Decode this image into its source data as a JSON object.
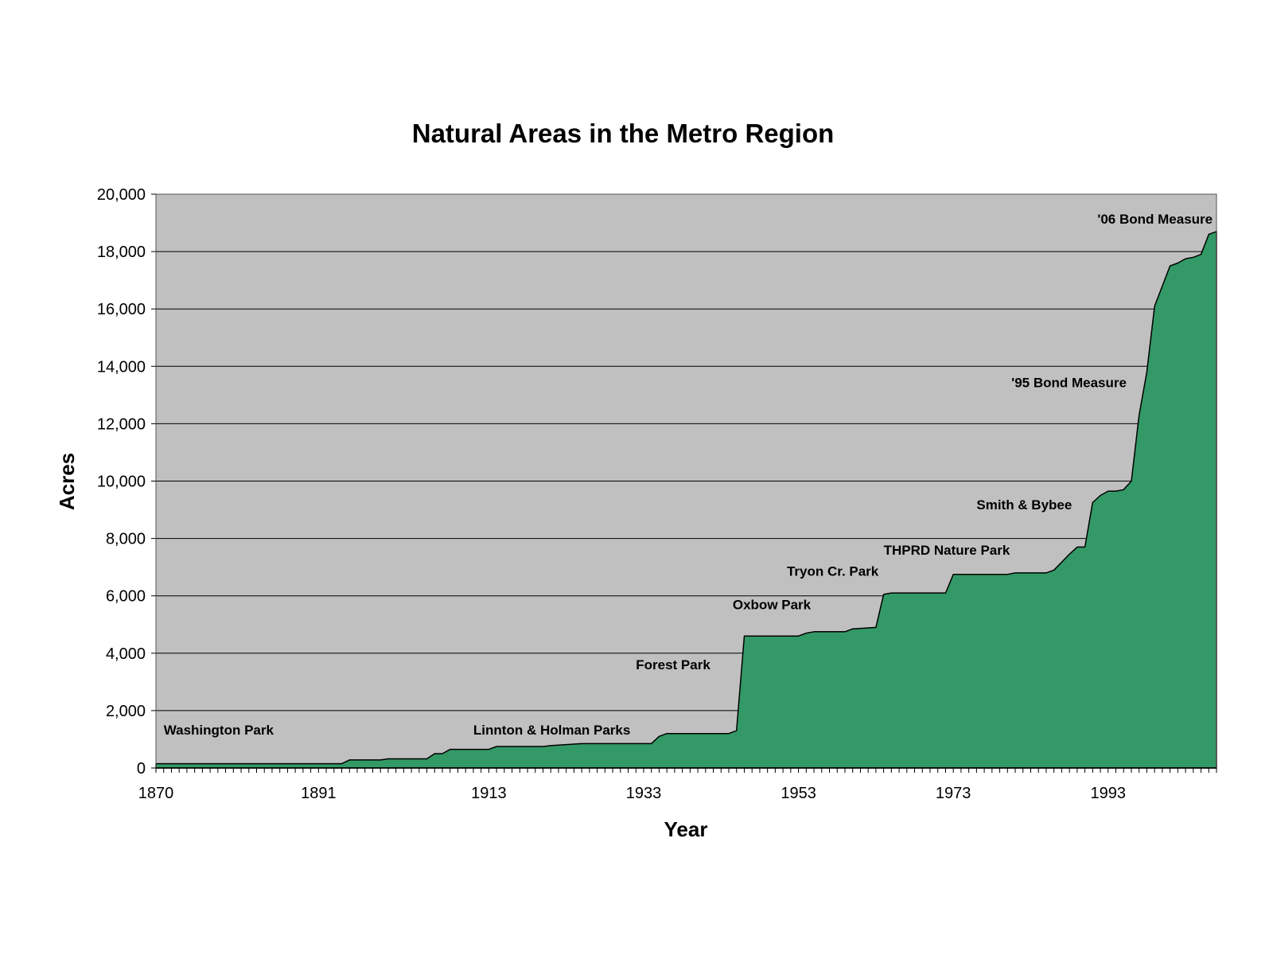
{
  "chart_data": {
    "type": "area",
    "title": "Natural Areas in the Metro Region",
    "xlabel": "Year",
    "ylabel": "Acres",
    "xlim": [
      1870,
      2007
    ],
    "ylim": [
      0,
      20000
    ],
    "x_tick_values": [
      1870,
      1891,
      1913,
      1933,
      1953,
      1973,
      1993
    ],
    "x_tick_labels": [
      "1870",
      "1891",
      "1913",
      "1933",
      "1953",
      "1973",
      "1993"
    ],
    "y_tick_values": [
      0,
      2000,
      4000,
      6000,
      8000,
      10000,
      12000,
      14000,
      16000,
      18000,
      20000
    ],
    "y_tick_labels": [
      "0",
      "2,000",
      "4,000",
      "6,000",
      "8,000",
      "10,000",
      "12,000",
      "14,000",
      "16,000",
      "18,000",
      "20,000"
    ],
    "grid": true,
    "legend": false,
    "plot_background": "#c0c0c0",
    "fill_color": "#339966",
    "line_color": "#000000",
    "series": [
      {
        "x": [
          1870,
          1894,
          1895,
          1896,
          1899,
          1900,
          1901,
          1905,
          1906,
          1907,
          1908,
          1909,
          1913,
          1914,
          1920,
          1921,
          1925,
          1930,
          1934,
          1935,
          1936,
          1944,
          1945,
          1946,
          1947,
          1953,
          1954,
          1955,
          1959,
          1960,
          1963,
          1964,
          1965,
          1972,
          1973,
          1980,
          1981,
          1985,
          1986,
          1988,
          1989,
          1990,
          1991,
          1992,
          1993,
          1994,
          1995,
          1996,
          1997,
          1998,
          1999,
          2000,
          2001,
          2002,
          2003,
          2004,
          2005,
          2006,
          2007
        ],
        "y": [
          150,
          150,
          280,
          280,
          280,
          320,
          320,
          320,
          500,
          500,
          650,
          650,
          650,
          750,
          750,
          780,
          850,
          850,
          850,
          1100,
          1200,
          1200,
          1300,
          4600,
          4600,
          4600,
          4700,
          4750,
          4750,
          4850,
          4900,
          6050,
          6100,
          6100,
          6750,
          6750,
          6800,
          6800,
          6900,
          7450,
          7700,
          7700,
          9250,
          9500,
          9650,
          9650,
          9700,
          10000,
          12300,
          13800,
          16100,
          16800,
          17500,
          17600,
          17750,
          17800,
          17900,
          18600,
          18700
        ]
      }
    ],
    "annotations": [
      {
        "text": "Washington Park",
        "x": 1871,
        "y": 1170,
        "anchor": "start"
      },
      {
        "text": "Linnton & Holman Parks",
        "x": 1911,
        "y": 1170,
        "anchor": "start"
      },
      {
        "text": "Forest Park",
        "x": 1932,
        "y": 3440,
        "anchor": "start"
      },
      {
        "text": "Oxbow Park",
        "x": 1944.5,
        "y": 5540,
        "anchor": "start"
      },
      {
        "text": "Tryon Cr. Park",
        "x": 1951.5,
        "y": 6700,
        "anchor": "start"
      },
      {
        "text": "THPRD Nature Park",
        "x": 1964,
        "y": 7430,
        "anchor": "start"
      },
      {
        "text": "Smith & Bybee",
        "x": 1976,
        "y": 9020,
        "anchor": "start"
      },
      {
        "text": "'95 Bond Measure",
        "x": 1980.5,
        "y": 13280,
        "anchor": "start"
      },
      {
        "text": "'06 Bond Measure",
        "x": 2006.5,
        "y": 18980,
        "anchor": "end"
      }
    ]
  }
}
